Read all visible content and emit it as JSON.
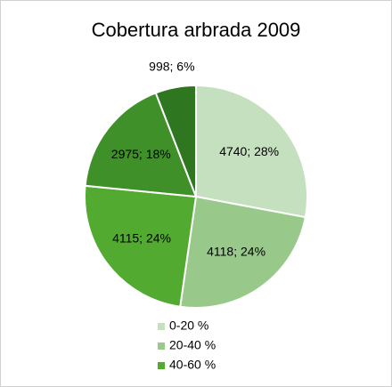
{
  "chart_data": {
    "type": "pie",
    "title": "Cobertura arbrada 2009",
    "categories": [
      "0-20 %",
      "20-40 %",
      "40-60 %",
      null,
      null
    ],
    "values": [
      4740,
      4118,
      4115,
      2975,
      998
    ],
    "value_labels": [
      "4740; 28%",
      "4118; 24%",
      "4115; 24%",
      "2975; 18%",
      "998; 6%"
    ],
    "colors": [
      "#c5e0bf",
      "#98c98a",
      "#52aa30",
      "#3f9028",
      "#2f7621"
    ]
  }
}
